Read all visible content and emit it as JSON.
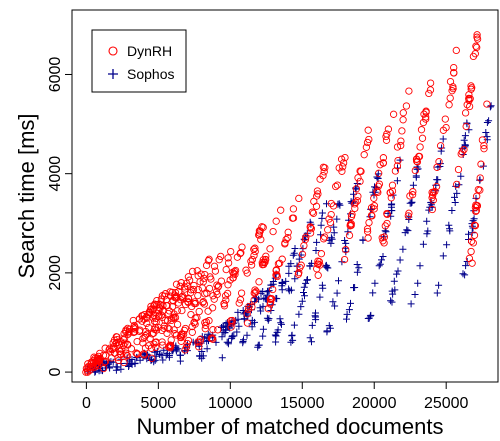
{
  "chart_data": {
    "type": "scatter",
    "title": "",
    "xlabel": "Number of matched documents",
    "ylabel": "Search time [ms]",
    "xlim": [
      -1000,
      28600
    ],
    "ylim": [
      -200,
      7300
    ],
    "xticks": [
      0,
      5000,
      10000,
      15000,
      20000,
      25000
    ],
    "xtick_labels": [
      "0",
      "5000",
      "10000",
      "15000",
      "20000",
      "25000"
    ],
    "yticks": [
      0,
      2000,
      4000,
      6000
    ],
    "ytick_labels": [
      "0",
      "2000",
      "4000",
      "6000"
    ],
    "grid": false,
    "legend": {
      "position": "top-left",
      "entries": [
        "DynRH",
        "Sophos"
      ]
    },
    "series": [
      {
        "name": "DynRH",
        "marker": "circle-open",
        "color": "#ff0000",
        "stripes": [
          {
            "x0": 0,
            "y0": 30,
            "x1": 900,
            "y1": 330
          },
          {
            "x0": 400,
            "y0": 60,
            "x1": 2200,
            "y1": 720
          },
          {
            "x0": 1200,
            "y0": 110,
            "x1": 3300,
            "y1": 1010
          },
          {
            "x0": 1900,
            "y0": 150,
            "x1": 4100,
            "y1": 1200
          },
          {
            "x0": 2600,
            "y0": 190,
            "x1": 4900,
            "y1": 1430
          },
          {
            "x0": 3200,
            "y0": 220,
            "x1": 5600,
            "y1": 1620
          },
          {
            "x0": 3800,
            "y0": 260,
            "x1": 6200,
            "y1": 1790
          },
          {
            "x0": 4400,
            "y0": 290,
            "x1": 6800,
            "y1": 1950
          },
          {
            "x0": 5000,
            "y0": 330,
            "x1": 7400,
            "y1": 2050
          },
          {
            "x0": 5600,
            "y0": 360,
            "x1": 8000,
            "y1": 2150
          },
          {
            "x0": 6200,
            "y0": 400,
            "x1": 8600,
            "y1": 2250
          },
          {
            "x0": 6900,
            "y0": 440,
            "x1": 9300,
            "y1": 2350
          },
          {
            "x0": 7700,
            "y0": 480,
            "x1": 10100,
            "y1": 2500
          },
          {
            "x0": 8600,
            "y0": 540,
            "x1": 11000,
            "y1": 2650
          },
          {
            "x0": 9700,
            "y0": 640,
            "x1": 12300,
            "y1": 3000
          },
          {
            "x0": 11000,
            "y0": 950,
            "x1": 13600,
            "y1": 3400
          },
          {
            "x0": 12600,
            "y0": 1250,
            "x1": 14800,
            "y1": 3700
          },
          {
            "x0": 14400,
            "y0": 1600,
            "x1": 16600,
            "y1": 4200
          },
          {
            "x0": 16000,
            "y0": 1950,
            "x1": 18000,
            "y1": 4500
          },
          {
            "x0": 17800,
            "y0": 2200,
            "x1": 19700,
            "y1": 4850
          },
          {
            "x0": 19400,
            "y0": 2500,
            "x1": 21300,
            "y1": 5300
          },
          {
            "x0": 20600,
            "y0": 2600,
            "x1": 22400,
            "y1": 5700
          },
          {
            "x0": 22300,
            "y0": 3000,
            "x1": 24100,
            "y1": 6150
          },
          {
            "x0": 24000,
            "y0": 3350,
            "x1": 25800,
            "y1": 6500
          },
          {
            "x0": 25700,
            "y0": 3700,
            "x1": 27300,
            "y1": 6900
          },
          {
            "x0": 26600,
            "y0": 2000,
            "x1": 28000,
            "y1": 5600
          }
        ]
      },
      {
        "name": "Sophos",
        "marker": "plus",
        "color": "#00008b",
        "stripes": [
          {
            "x0": 0,
            "y0": 40,
            "x1": 1800,
            "y1": 200
          },
          {
            "x0": 600,
            "y0": 60,
            "x1": 4500,
            "y1": 330
          },
          {
            "x0": 2000,
            "y0": 90,
            "x1": 6500,
            "y1": 500
          },
          {
            "x0": 4000,
            "y0": 150,
            "x1": 8500,
            "y1": 700
          },
          {
            "x0": 6000,
            "y0": 200,
            "x1": 10300,
            "y1": 1050
          },
          {
            "x0": 7800,
            "y0": 260,
            "x1": 11300,
            "y1": 1350
          },
          {
            "x0": 9300,
            "y0": 320,
            "x1": 12300,
            "y1": 1700
          },
          {
            "x0": 10600,
            "y0": 400,
            "x1": 13300,
            "y1": 2050
          },
          {
            "x0": 11800,
            "y0": 470,
            "x1": 14600,
            "y1": 2500
          },
          {
            "x0": 13000,
            "y0": 520,
            "x1": 15600,
            "y1": 3050
          },
          {
            "x0": 14200,
            "y0": 580,
            "x1": 16700,
            "y1": 3400
          },
          {
            "x0": 15600,
            "y0": 650,
            "x1": 17700,
            "y1": 3600
          },
          {
            "x0": 16800,
            "y0": 760,
            "x1": 18800,
            "y1": 3850
          },
          {
            "x0": 18000,
            "y0": 900,
            "x1": 20400,
            "y1": 4150
          },
          {
            "x0": 19600,
            "y0": 1020,
            "x1": 21800,
            "y1": 4300
          },
          {
            "x0": 21000,
            "y0": 1150,
            "x1": 23400,
            "y1": 4550
          },
          {
            "x0": 22600,
            "y0": 1300,
            "x1": 24900,
            "y1": 4800
          },
          {
            "x0": 24400,
            "y0": 1600,
            "x1": 26600,
            "y1": 5100
          },
          {
            "x0": 26200,
            "y0": 1900,
            "x1": 28200,
            "y1": 5400
          }
        ]
      }
    ]
  }
}
